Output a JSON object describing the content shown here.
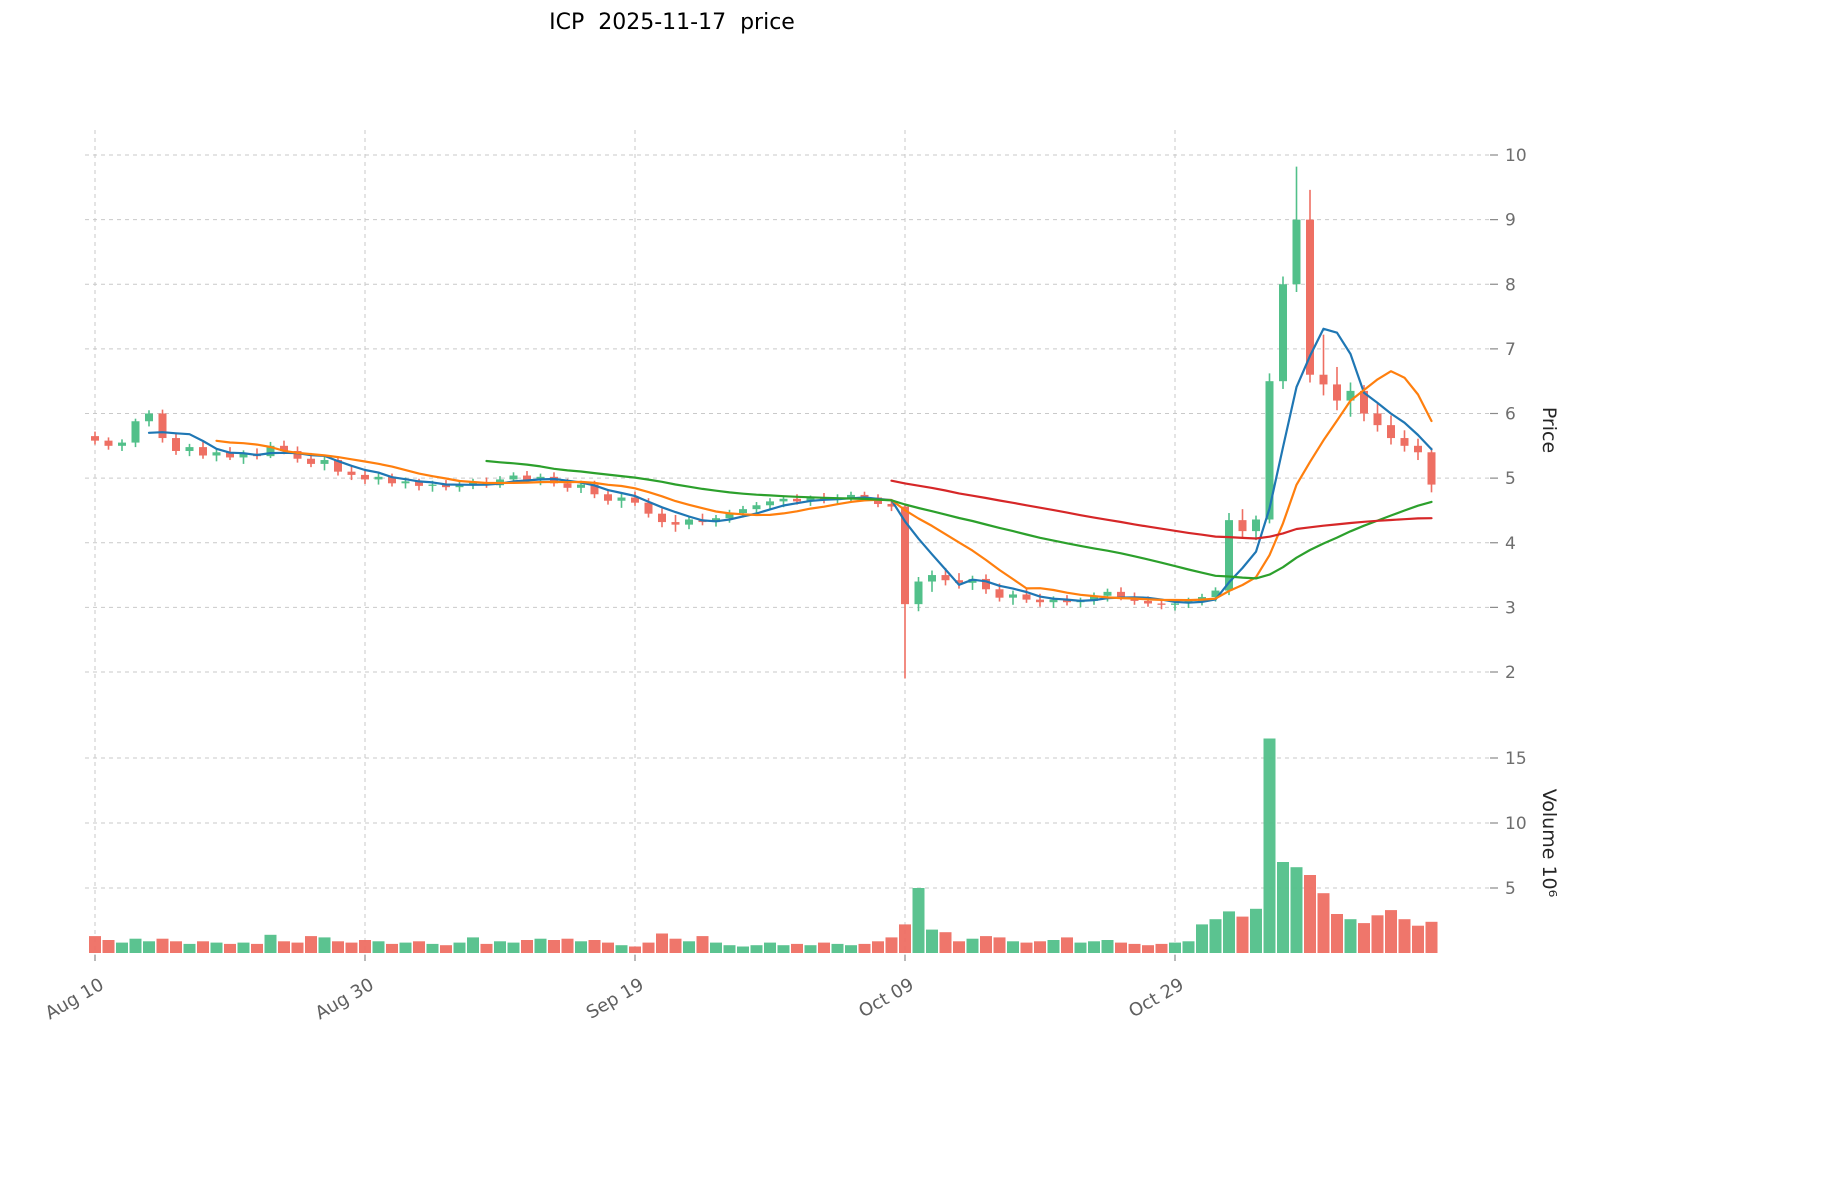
{
  "colors": {
    "up": "#52c08a",
    "down": "#ee6f63",
    "ma_fast": "#1f77b4",
    "ma_mid": "#ff7f0e",
    "ma_slow": "#2ca02c",
    "ma_long": "#d62728",
    "grid": "#c9c9c9",
    "tick_mark": "#8a8a8a"
  },
  "chart_data": {
    "type": "candlestick",
    "title": "ICP  2025-11-17  price",
    "ylabel_price": "Price",
    "ylabel_volume": "Volume  10⁶",
    "price_axis_range": [
      2,
      10
    ],
    "price_ticks": [
      10,
      9,
      8,
      7,
      6,
      5,
      4,
      3,
      2
    ],
    "volume_ticks_millions": [
      15,
      10,
      5
    ],
    "x_ticks": [
      {
        "label": "Aug 10",
        "index": 0
      },
      {
        "label": "Aug 30",
        "index": 20
      },
      {
        "label": "Sep 19",
        "index": 40
      },
      {
        "label": "Oct 09",
        "index": 60
      },
      {
        "label": "Oct 29",
        "index": 80
      }
    ],
    "grid": true,
    "legend": "none",
    "moving_averages": [
      {
        "name": "SMA5",
        "window": 5,
        "color_key": "ma_fast"
      },
      {
        "name": "SMA10",
        "window": 10,
        "color_key": "ma_mid"
      },
      {
        "name": "SMA30",
        "window": 30,
        "color_key": "ma_slow"
      },
      {
        "name": "SMA60",
        "window": 60,
        "color_key": "ma_long"
      }
    ],
    "ohlc": [
      [
        5.65,
        5.72,
        5.52,
        5.58
      ],
      [
        5.58,
        5.63,
        5.44,
        5.5
      ],
      [
        5.5,
        5.6,
        5.42,
        5.55
      ],
      [
        5.55,
        5.92,
        5.48,
        5.88
      ],
      [
        5.88,
        6.05,
        5.8,
        6.0
      ],
      [
        6.0,
        6.06,
        5.55,
        5.62
      ],
      [
        5.62,
        5.7,
        5.36,
        5.42
      ],
      [
        5.42,
        5.53,
        5.34,
        5.48
      ],
      [
        5.48,
        5.56,
        5.3,
        5.35
      ],
      [
        5.35,
        5.46,
        5.26,
        5.4
      ],
      [
        5.4,
        5.48,
        5.28,
        5.32
      ],
      [
        5.32,
        5.43,
        5.22,
        5.38
      ],
      [
        5.38,
        5.46,
        5.29,
        5.34
      ],
      [
        5.34,
        5.56,
        5.31,
        5.5
      ],
      [
        5.5,
        5.58,
        5.37,
        5.42
      ],
      [
        5.42,
        5.49,
        5.24,
        5.3
      ],
      [
        5.3,
        5.39,
        5.17,
        5.22
      ],
      [
        5.22,
        5.33,
        5.12,
        5.28
      ],
      [
        5.28,
        5.33,
        5.04,
        5.1
      ],
      [
        5.1,
        5.19,
        4.97,
        5.05
      ],
      [
        5.05,
        5.13,
        4.91,
        4.98
      ],
      [
        4.98,
        5.09,
        4.9,
        5.02
      ],
      [
        5.02,
        5.07,
        4.87,
        4.92
      ],
      [
        4.92,
        5.01,
        4.84,
        4.95
      ],
      [
        4.95,
        4.99,
        4.81,
        4.88
      ],
      [
        4.88,
        4.96,
        4.79,
        4.9
      ],
      [
        4.9,
        4.97,
        4.81,
        4.86
      ],
      [
        4.86,
        4.95,
        4.79,
        4.9
      ],
      [
        4.9,
        4.99,
        4.83,
        4.94
      ],
      [
        4.94,
        5.01,
        4.85,
        4.89
      ],
      [
        4.89,
        5.03,
        4.85,
        4.98
      ],
      [
        4.98,
        5.09,
        4.91,
        5.04
      ],
      [
        5.04,
        5.11,
        4.93,
        4.97
      ],
      [
        4.97,
        5.07,
        4.89,
        5.02
      ],
      [
        5.02,
        5.09,
        4.87,
        4.92
      ],
      [
        4.92,
        4.99,
        4.79,
        4.85
      ],
      [
        4.85,
        4.96,
        4.77,
        4.9
      ],
      [
        4.9,
        4.96,
        4.69,
        4.75
      ],
      [
        4.75,
        4.83,
        4.59,
        4.65
      ],
      [
        4.65,
        4.76,
        4.54,
        4.7
      ],
      [
        4.7,
        4.79,
        4.57,
        4.62
      ],
      [
        4.62,
        4.69,
        4.39,
        4.45
      ],
      [
        4.45,
        4.53,
        4.24,
        4.32
      ],
      [
        4.32,
        4.43,
        4.17,
        4.28
      ],
      [
        4.28,
        4.41,
        4.21,
        4.36
      ],
      [
        4.36,
        4.45,
        4.27,
        4.32
      ],
      [
        4.32,
        4.43,
        4.25,
        4.38
      ],
      [
        4.38,
        4.51,
        4.31,
        4.46
      ],
      [
        4.46,
        4.57,
        4.39,
        4.52
      ],
      [
        4.52,
        4.63,
        4.45,
        4.58
      ],
      [
        4.58,
        4.69,
        4.51,
        4.64
      ],
      [
        4.64,
        4.73,
        4.55,
        4.68
      ],
      [
        4.68,
        4.75,
        4.59,
        4.64
      ],
      [
        4.64,
        4.73,
        4.57,
        4.7
      ],
      [
        4.7,
        4.77,
        4.61,
        4.66
      ],
      [
        4.66,
        4.75,
        4.59,
        4.7
      ],
      [
        4.7,
        4.79,
        4.63,
        4.74
      ],
      [
        4.74,
        4.79,
        4.65,
        4.7
      ],
      [
        4.7,
        4.75,
        4.55,
        4.6
      ],
      [
        4.6,
        4.67,
        4.49,
        4.56
      ],
      [
        4.56,
        4.61,
        1.9,
        3.05
      ],
      [
        3.05,
        3.47,
        2.94,
        3.4
      ],
      [
        3.4,
        3.57,
        3.24,
        3.5
      ],
      [
        3.5,
        3.61,
        3.34,
        3.42
      ],
      [
        3.42,
        3.53,
        3.29,
        3.38
      ],
      [
        3.38,
        3.49,
        3.27,
        3.44
      ],
      [
        3.44,
        3.51,
        3.21,
        3.28
      ],
      [
        3.28,
        3.37,
        3.09,
        3.15
      ],
      [
        3.15,
        3.26,
        3.04,
        3.2
      ],
      [
        3.2,
        3.29,
        3.07,
        3.12
      ],
      [
        3.12,
        3.21,
        3.01,
        3.08
      ],
      [
        3.08,
        3.17,
        2.99,
        3.12
      ],
      [
        3.12,
        3.19,
        3.03,
        3.08
      ],
      [
        3.08,
        3.15,
        3.0,
        3.1
      ],
      [
        3.1,
        3.23,
        3.04,
        3.18
      ],
      [
        3.18,
        3.29,
        3.09,
        3.24
      ],
      [
        3.24,
        3.31,
        3.11,
        3.16
      ],
      [
        3.16,
        3.23,
        3.04,
        3.1
      ],
      [
        3.1,
        3.17,
        3.01,
        3.06
      ],
      [
        3.06,
        3.13,
        2.97,
        3.04
      ],
      [
        3.04,
        3.11,
        2.95,
        3.06
      ],
      [
        3.06,
        3.15,
        2.99,
        3.1
      ],
      [
        3.1,
        3.21,
        3.03,
        3.16
      ],
      [
        3.16,
        3.31,
        3.09,
        3.26
      ],
      [
        3.26,
        4.46,
        3.19,
        4.35
      ],
      [
        4.35,
        4.52,
        4.08,
        4.18
      ],
      [
        4.18,
        4.42,
        4.04,
        4.36
      ],
      [
        4.36,
        6.62,
        4.3,
        6.5
      ],
      [
        6.5,
        8.12,
        6.38,
        8.0
      ],
      [
        8.0,
        9.82,
        7.88,
        9.0
      ],
      [
        9.0,
        9.46,
        6.48,
        6.6
      ],
      [
        6.6,
        7.22,
        6.28,
        6.45
      ],
      [
        6.45,
        6.72,
        6.05,
        6.2
      ],
      [
        6.2,
        6.48,
        5.95,
        6.35
      ],
      [
        6.35,
        6.44,
        5.88,
        6.0
      ],
      [
        6.0,
        6.15,
        5.72,
        5.82
      ],
      [
        5.82,
        5.97,
        5.52,
        5.62
      ],
      [
        5.62,
        5.74,
        5.41,
        5.5
      ],
      [
        5.5,
        5.61,
        5.28,
        5.4
      ],
      [
        5.4,
        5.47,
        4.78,
        4.9
      ]
    ],
    "volume_millions": [
      1.3,
      1.0,
      0.8,
      1.1,
      0.9,
      1.1,
      0.9,
      0.7,
      0.9,
      0.8,
      0.7,
      0.8,
      0.7,
      1.4,
      0.9,
      0.8,
      1.3,
      1.2,
      0.9,
      0.8,
      1.0,
      0.9,
      0.7,
      0.8,
      0.9,
      0.7,
      0.6,
      0.8,
      1.2,
      0.7,
      0.9,
      0.8,
      1.0,
      1.1,
      1.0,
      1.1,
      0.9,
      1.0,
      0.8,
      0.6,
      0.5,
      0.8,
      1.5,
      1.1,
      0.9,
      1.3,
      0.8,
      0.6,
      0.5,
      0.6,
      0.8,
      0.6,
      0.7,
      0.6,
      0.8,
      0.7,
      0.6,
      0.7,
      0.9,
      1.2,
      2.2,
      5.0,
      1.8,
      1.6,
      0.9,
      1.1,
      1.3,
      1.2,
      0.9,
      0.8,
      0.9,
      1.0,
      1.2,
      0.8,
      0.9,
      1.0,
      0.8,
      0.7,
      0.6,
      0.7,
      0.8,
      0.9,
      2.2,
      2.6,
      3.2,
      2.8,
      3.4,
      16.5,
      7.0,
      6.6,
      6.0,
      4.6,
      3.0,
      2.6,
      2.3,
      2.9,
      3.3,
      2.6,
      2.1,
      2.4
    ]
  }
}
